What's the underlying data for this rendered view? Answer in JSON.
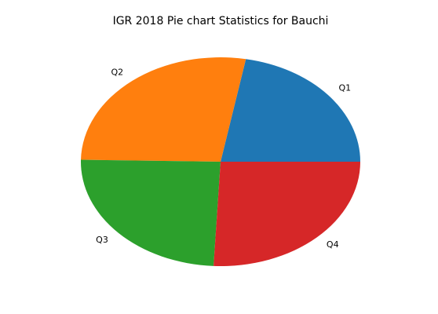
{
  "chart_data": {
    "type": "pie",
    "title": "IGR 2018 Pie chart Statistics for Bauchi",
    "categories": [
      "Q1",
      "Q2",
      "Q3",
      "Q4"
    ],
    "values": [
      22.1,
      27.6,
      24.5,
      25.8
    ],
    "colors": [
      "#1f77b4",
      "#ff7f0e",
      "#2ca02c",
      "#d62728"
    ],
    "start_angle_deg": 0,
    "direction": "counterclockwise",
    "legend": false
  }
}
